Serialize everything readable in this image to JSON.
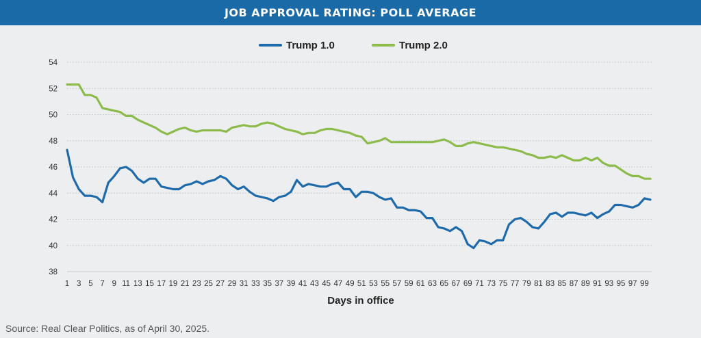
{
  "header": {
    "title": "JOB APPROVAL RATING: POLL AVERAGE"
  },
  "source": "Source: Real Clear Politics, as of April 30, 2025.",
  "chart_data": {
    "type": "line",
    "title": "JOB APPROVAL RATING: POLL AVERAGE",
    "xlabel": "Days in office",
    "ylabel": "",
    "xlim": [
      1,
      100
    ],
    "ylim": [
      38,
      54
    ],
    "yticks": [
      38,
      40,
      42,
      44,
      46,
      48,
      50,
      52,
      54
    ],
    "xticks": [
      1,
      3,
      5,
      7,
      9,
      11,
      13,
      15,
      17,
      19,
      21,
      23,
      25,
      27,
      29,
      31,
      33,
      35,
      37,
      39,
      41,
      43,
      45,
      47,
      49,
      51,
      53,
      55,
      57,
      59,
      61,
      63,
      65,
      67,
      69,
      71,
      73,
      75,
      77,
      79,
      81,
      83,
      85,
      87,
      89,
      91,
      93,
      95,
      97,
      99
    ],
    "grid": true,
    "legend": "top-center",
    "series": [
      {
        "name": "Trump 1.0",
        "color": "#1f6aaa",
        "x": [
          1,
          2,
          3,
          4,
          5,
          6,
          7,
          8,
          9,
          10,
          11,
          12,
          13,
          14,
          15,
          16,
          17,
          18,
          19,
          20,
          21,
          22,
          23,
          24,
          25,
          26,
          27,
          28,
          29,
          30,
          31,
          32,
          33,
          34,
          35,
          36,
          37,
          38,
          39,
          40,
          41,
          42,
          43,
          44,
          45,
          46,
          47,
          48,
          49,
          50,
          51,
          52,
          53,
          54,
          55,
          56,
          57,
          58,
          59,
          60,
          61,
          62,
          63,
          64,
          65,
          66,
          67,
          68,
          69,
          70,
          71,
          72,
          73,
          74,
          75,
          76,
          77,
          78,
          79,
          80,
          81,
          82,
          83,
          84,
          85,
          86,
          87,
          88,
          89,
          90,
          91,
          92,
          93,
          94,
          95,
          96,
          97,
          98,
          99,
          100
        ],
        "values": [
          47.3,
          45.2,
          44.3,
          43.8,
          43.8,
          43.7,
          43.3,
          44.8,
          45.3,
          45.9,
          46.0,
          45.7,
          45.1,
          44.8,
          45.1,
          45.1,
          44.5,
          44.4,
          44.3,
          44.3,
          44.6,
          44.7,
          44.9,
          44.7,
          44.9,
          45.0,
          45.3,
          45.1,
          44.6,
          44.3,
          44.5,
          44.1,
          43.8,
          43.7,
          43.6,
          43.4,
          43.7,
          43.8,
          44.1,
          45.0,
          44.5,
          44.7,
          44.6,
          44.5,
          44.5,
          44.7,
          44.8,
          44.3,
          44.3,
          43.7,
          44.1,
          44.1,
          44.0,
          43.7,
          43.5,
          43.6,
          42.9,
          42.9,
          42.7,
          42.7,
          42.6,
          42.1,
          42.1,
          41.4,
          41.3,
          41.1,
          41.4,
          41.1,
          40.1,
          39.8,
          40.4,
          40.3,
          40.1,
          40.4,
          40.4,
          41.6,
          42.0,
          42.1,
          41.8,
          41.4,
          41.3,
          41.8,
          42.4,
          42.5,
          42.2,
          42.5,
          42.5,
          42.4,
          42.3,
          42.5,
          42.1,
          42.4,
          42.6,
          43.1,
          43.1,
          43.0,
          42.9,
          43.1,
          43.6,
          43.5
        ]
      },
      {
        "name": "Trump 2.0",
        "color": "#8dbb4b",
        "x": [
          1,
          2,
          3,
          4,
          5,
          6,
          7,
          8,
          9,
          10,
          11,
          12,
          13,
          14,
          15,
          16,
          17,
          18,
          19,
          20,
          21,
          22,
          23,
          24,
          25,
          26,
          27,
          28,
          29,
          30,
          31,
          32,
          33,
          34,
          35,
          36,
          37,
          38,
          39,
          40,
          41,
          42,
          43,
          44,
          45,
          46,
          47,
          48,
          49,
          50,
          51,
          52,
          53,
          54,
          55,
          56,
          57,
          58,
          59,
          60,
          61,
          62,
          63,
          64,
          65,
          66,
          67,
          68,
          69,
          70,
          71,
          72,
          73,
          74,
          75,
          76,
          77,
          78,
          79,
          80,
          81,
          82,
          83,
          84,
          85,
          86,
          87,
          88,
          89,
          90,
          91,
          92,
          93,
          94,
          95,
          96,
          97,
          98,
          99,
          100
        ],
        "values": [
          52.3,
          52.3,
          52.3,
          51.5,
          51.5,
          51.3,
          50.5,
          50.4,
          50.3,
          50.2,
          49.9,
          49.9,
          49.6,
          49.4,
          49.2,
          49.0,
          48.7,
          48.5,
          48.7,
          48.9,
          49.0,
          48.8,
          48.7,
          48.8,
          48.8,
          48.8,
          48.8,
          48.7,
          49.0,
          49.1,
          49.2,
          49.1,
          49.1,
          49.3,
          49.4,
          49.3,
          49.1,
          48.9,
          48.8,
          48.7,
          48.5,
          48.6,
          48.6,
          48.8,
          48.9,
          48.9,
          48.8,
          48.7,
          48.6,
          48.4,
          48.3,
          47.8,
          47.9,
          48.0,
          48.2,
          47.9,
          47.9,
          47.9,
          47.9,
          47.9,
          47.9,
          47.9,
          47.9,
          48.0,
          48.1,
          47.9,
          47.6,
          47.6,
          47.8,
          47.9,
          47.8,
          47.7,
          47.6,
          47.5,
          47.5,
          47.4,
          47.3,
          47.2,
          47.0,
          46.9,
          46.7,
          46.7,
          46.8,
          46.7,
          46.9,
          46.7,
          46.5,
          46.5,
          46.7,
          46.5,
          46.7,
          46.3,
          46.1,
          46.1,
          45.8,
          45.5,
          45.3,
          45.3,
          45.1,
          45.1
        ]
      }
    ]
  }
}
